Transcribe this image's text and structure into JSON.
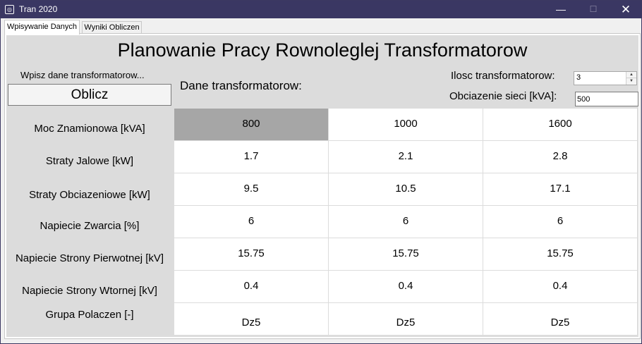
{
  "window": {
    "title": "Tran 2020",
    "controls": {
      "minimize": "—",
      "maximize": "☐",
      "close": "✕"
    }
  },
  "tabs": [
    {
      "label": "Wpisywanie Danych",
      "active": true
    },
    {
      "label": "Wyniki Obliczen",
      "active": false
    }
  ],
  "main": {
    "title": "Planowanie Pracy Rownoleglej Transformatorow",
    "hint": "Wpisz dane transformatorow...",
    "calc_button": "Oblicz",
    "data_label": "Dane transformatorow:",
    "count_label": "Ilosc transformatorow:",
    "count_value": "3",
    "load_label": "Obciazenie sieci [kVA]:",
    "load_value": "500"
  },
  "table": {
    "rows": [
      {
        "label": "Moc Znamionowa [kVA]",
        "values": [
          "800",
          "1000",
          "1600"
        ]
      },
      {
        "label": "Straty Jalowe [kW]",
        "values": [
          "1.7",
          "2.1",
          "2.8"
        ]
      },
      {
        "label": "Straty Obciazeniowe [kW]",
        "values": [
          "9.5",
          "10.5",
          "17.1"
        ]
      },
      {
        "label": "Napiecie Zwarcia [%]",
        "values": [
          "6",
          "6",
          "6"
        ]
      },
      {
        "label": "Napiecie Strony Pierwotnej [kV]",
        "values": [
          "15.75",
          "15.75",
          "15.75"
        ]
      },
      {
        "label": "Napiecie Strony Wtornej [kV]",
        "values": [
          "0.4",
          "0.4",
          "0.4"
        ]
      },
      {
        "label": "Grupa Polaczen [-]",
        "values": [
          "Dz5",
          "Dz5",
          "Dz5"
        ]
      }
    ]
  },
  "colors": {
    "titlebar": "#3a3763",
    "panel_bg": "#dcdcdc",
    "selected_cell": "#a6a6a6"
  }
}
